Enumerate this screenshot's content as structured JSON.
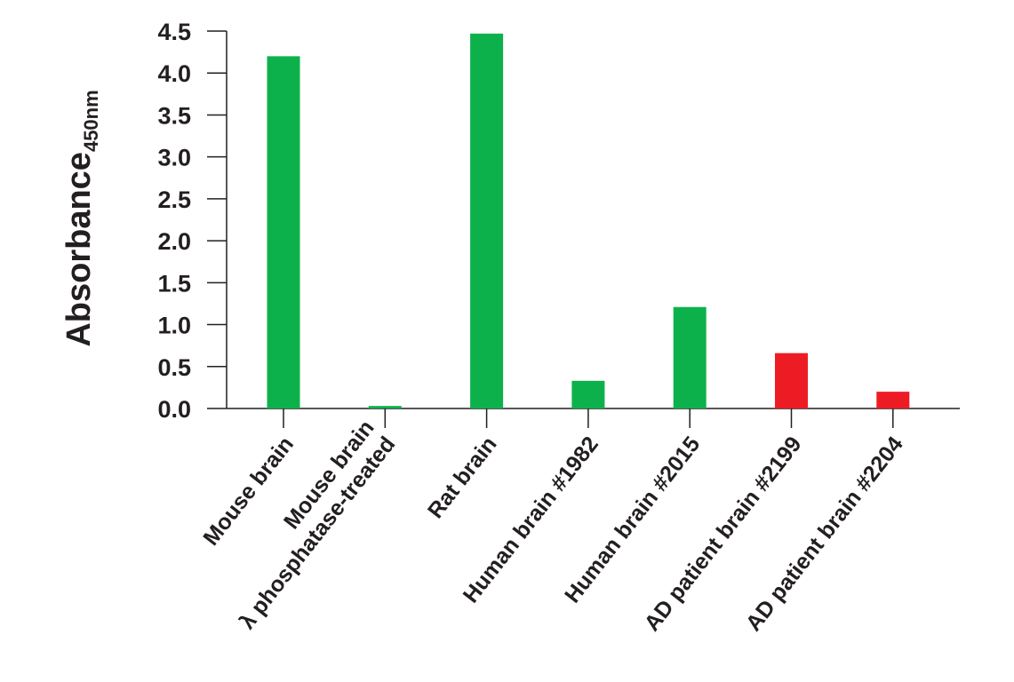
{
  "chart_data": {
    "type": "bar",
    "ylabel": "Absorbance",
    "ylabel_subscript": "450nm",
    "xlabel": "",
    "ylim": [
      0,
      4.5
    ],
    "yticks": [
      "0.0",
      "0.5",
      "1.0",
      "1.5",
      "2.0",
      "2.5",
      "3.0",
      "3.5",
      "4.0",
      "4.5"
    ],
    "grid": false,
    "categories": [
      [
        "Mouse brain"
      ],
      [
        "Mouse brain",
        "λ phosphatase-treated"
      ],
      [
        "Rat brain"
      ],
      [
        "Human brain #1982"
      ],
      [
        "Human brain #2015"
      ],
      [
        "AD patient brain #2199"
      ],
      [
        "AD patient brain #2204"
      ]
    ],
    "values": [
      4.2,
      0.03,
      4.47,
      0.33,
      1.21,
      0.66,
      0.2
    ],
    "bar_colors": [
      "#0db14b",
      "#0db14b",
      "#0db14b",
      "#0db14b",
      "#0db14b",
      "#ed1c24",
      "#ed1c24"
    ],
    "axis_color": "#231f20"
  }
}
